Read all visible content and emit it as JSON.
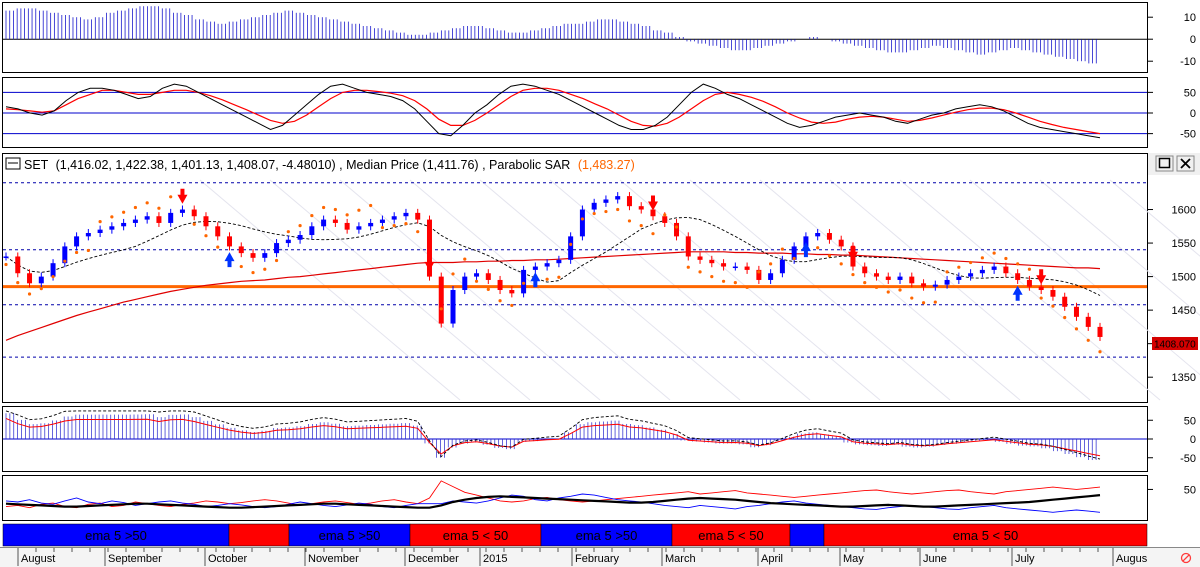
{
  "header": {
    "symbol": "SET",
    "ohlc_text": "(1,416.02, 1,422.38, 1,401.13, 1,408.07, -4.48010)",
    "median_text": "Median Price (1,411.76)",
    "sar_label": "Parabolic SAR",
    "sar_value_text": "(1,483.27)",
    "last_price_badge": "1408.070"
  },
  "colors": {
    "up_candle": "#0000ff",
    "down_candle": "#ff0000",
    "neutral_candle": "#000000",
    "sar_dots": "#ff6600",
    "long_ma": "#e00000",
    "hline_orange": "#ff6600",
    "dashed_levels": "#0000aa",
    "buy_arrow": "#0033ff",
    "sell_arrow": "#ff0000",
    "band_blue": "#0000ff",
    "band_red": "#ff0000"
  },
  "icons": {
    "restore": "restore-icon",
    "close": "close-icon",
    "status": "no-sync-icon"
  },
  "chart_data": {
    "type": "candlestick",
    "panels": {
      "top_histogram": {
        "yticks": [
          "10",
          "0",
          "-10"
        ],
        "ylim": [
          -14,
          16
        ],
        "values": [
          13,
          14,
          14,
          13,
          12,
          11,
          10,
          9,
          10,
          12,
          13,
          14,
          15,
          15,
          14,
          12,
          11,
          9,
          8,
          7,
          8,
          9,
          10,
          11,
          12,
          13,
          12,
          11,
          10,
          9,
          8,
          7,
          6,
          5,
          4,
          3,
          2,
          2,
          3,
          4,
          5,
          6,
          6,
          5,
          4,
          3,
          3,
          4,
          5,
          6,
          7,
          7,
          8,
          9,
          9,
          8,
          7,
          6,
          4,
          3,
          1,
          -1,
          -2,
          -3,
          -4,
          -5,
          -5,
          -4,
          -3,
          -2,
          -1,
          0,
          1,
          0,
          -1,
          -2,
          -3,
          -4,
          -5,
          -6,
          -6,
          -5,
          -4,
          -3,
          -4,
          -5,
          -6,
          -7,
          -6,
          -5,
          -4,
          -5,
          -6,
          -7,
          -8,
          -9,
          -10,
          -11
        ]
      },
      "oscillator_1": {
        "yticks": [
          "50",
          "0",
          "-50"
        ],
        "ylim": [
          -80,
          80
        ],
        "osc_values": [
          15,
          10,
          0,
          -5,
          5,
          30,
          50,
          60,
          60,
          55,
          45,
          35,
          40,
          60,
          70,
          65,
          50,
          35,
          20,
          5,
          -10,
          -25,
          -40,
          -30,
          -5,
          20,
          45,
          65,
          70,
          60,
          50,
          45,
          40,
          30,
          10,
          -20,
          -50,
          -55,
          -30,
          0,
          20,
          45,
          65,
          70,
          65,
          55,
          45,
          30,
          15,
          0,
          -15,
          -30,
          -40,
          -40,
          -30,
          -10,
          20,
          50,
          70,
          60,
          45,
          35,
          20,
          5,
          -10,
          -25,
          -35,
          -30,
          -20,
          -10,
          -5,
          0,
          -5,
          -10,
          -20,
          -25,
          -15,
          -5,
          0,
          10,
          15,
          20,
          15,
          5,
          -10,
          -25,
          -35,
          -40,
          -45,
          -50,
          -55,
          -60
        ],
        "signal_values": [
          10,
          8,
          5,
          2,
          5,
          20,
          35,
          45,
          55,
          55,
          50,
          45,
          45,
          50,
          55,
          55,
          50,
          42,
          32,
          20,
          8,
          -5,
          -18,
          -25,
          -20,
          -5,
          15,
          35,
          50,
          55,
          55,
          52,
          48,
          42,
          30,
          10,
          -15,
          -30,
          -30,
          -18,
          0,
          20,
          40,
          55,
          60,
          60,
          55,
          45,
          35,
          22,
          10,
          -5,
          -20,
          -30,
          -32,
          -25,
          -10,
          10,
          30,
          45,
          50,
          45,
          38,
          28,
          15,
          0,
          -12,
          -22,
          -25,
          -22,
          -15,
          -10,
          -8,
          -10,
          -15,
          -20,
          -18,
          -12,
          -5,
          2,
          8,
          12,
          12,
          8,
          0,
          -10,
          -20,
          -28,
          -35,
          -40,
          -45,
          -50
        ]
      },
      "main": {
        "yticks": [
          1600,
          1550,
          1500,
          1450,
          1400,
          1350
        ],
        "ylim": [
          1316,
          1650
        ],
        "hline_orange": 1485,
        "dashed_levels": [
          1640,
          1540,
          1458,
          1380
        ],
        "close": [
          1530,
          1505,
          1490,
          1500,
          1520,
          1545,
          1560,
          1565,
          1570,
          1575,
          1580,
          1585,
          1590,
          1580,
          1595,
          1600,
          1590,
          1575,
          1560,
          1545,
          1535,
          1528,
          1535,
          1550,
          1555,
          1562,
          1575,
          1585,
          1580,
          1570,
          1575,
          1580,
          1585,
          1590,
          1595,
          1585,
          1500,
          1430,
          1480,
          1500,
          1505,
          1495,
          1480,
          1475,
          1510,
          1515,
          1520,
          1525,
          1560,
          1600,
          1610,
          1615,
          1620,
          1605,
          1600,
          1590,
          1580,
          1560,
          1530,
          1525,
          1520,
          1515,
          1515,
          1510,
          1495,
          1505,
          1525,
          1545,
          1560,
          1565,
          1555,
          1545,
          1515,
          1505,
          1500,
          1495,
          1500,
          1490,
          1485,
          1488,
          1495,
          1500,
          1505,
          1510,
          1515,
          1505,
          1495,
          1485,
          1480,
          1470,
          1455,
          1440,
          1425,
          1410
        ],
        "long_ma": [
          1405,
          1412,
          1418,
          1424,
          1430,
          1436,
          1442,
          1447,
          1452,
          1457,
          1462,
          1466,
          1470,
          1474,
          1478,
          1481,
          1484,
          1487,
          1489,
          1491,
          1493,
          1494,
          1495,
          1497,
          1499,
          1500,
          1502,
          1504,
          1506,
          1508,
          1510,
          1512,
          1514,
          1516,
          1518,
          1520,
          1521,
          1521,
          1521,
          1522,
          1522,
          1523,
          1523,
          1524,
          1524,
          1525,
          1525,
          1526,
          1527,
          1528,
          1529,
          1530,
          1531,
          1532,
          1533,
          1534,
          1535,
          1536,
          1537,
          1537,
          1537,
          1537,
          1536,
          1536,
          1535,
          1535,
          1535,
          1534,
          1534,
          1533,
          1533,
          1532,
          1532,
          1531,
          1530,
          1529,
          1528,
          1527,
          1526,
          1525,
          1524,
          1523,
          1522,
          1521,
          1520,
          1519,
          1518,
          1517,
          1516,
          1515,
          1514,
          1513,
          1513,
          1512
        ]
      },
      "oscillator_2": {
        "yticks": [
          "50",
          "0",
          "-50"
        ],
        "ylim": [
          -80,
          80
        ]
      },
      "adx": {
        "yticks": [
          "50"
        ],
        "ylim": [
          0,
          70
        ],
        "adx_values": [
          25,
          24,
          23,
          22,
          21,
          20,
          20,
          21,
          22,
          23,
          24,
          25,
          25,
          24,
          23,
          22,
          21,
          20,
          19,
          18,
          18,
          19,
          20,
          21,
          22,
          23,
          24,
          25,
          25,
          24,
          23,
          22,
          21,
          20,
          19,
          18,
          18,
          22,
          28,
          32,
          35,
          37,
          38,
          37,
          36,
          35,
          34,
          33,
          32,
          31,
          30,
          29,
          28,
          27,
          27,
          28,
          30,
          32,
          34,
          35,
          34,
          33,
          32,
          30,
          28,
          26,
          25,
          24,
          23,
          22,
          21,
          20,
          20,
          21,
          22,
          23,
          22,
          21,
          20,
          20,
          21,
          22,
          23,
          24,
          25,
          26,
          27,
          28,
          30,
          32,
          34,
          36,
          38,
          40
        ],
        "di_plus": [
          30,
          28,
          32,
          26,
          24,
          30,
          35,
          28,
          25,
          30,
          27,
          22,
          25,
          28,
          30,
          26,
          24,
          20,
          22,
          25,
          23,
          20,
          18,
          20,
          24,
          28,
          25,
          22,
          20,
          23,
          26,
          24,
          20,
          18,
          22,
          25,
          25,
          25,
          30,
          28,
          26,
          30,
          35,
          40,
          38,
          32,
          30,
          35,
          38,
          42,
          40,
          36,
          32,
          30,
          28,
          25,
          22,
          20,
          18,
          22,
          20,
          18,
          16,
          20,
          22,
          25,
          28,
          30,
          26,
          24,
          22,
          20,
          18,
          16,
          15,
          18,
          20,
          22,
          20,
          18,
          16,
          15,
          18,
          20,
          22,
          18,
          16,
          14,
          12,
          10,
          12,
          14,
          12,
          10
        ],
        "di_minus": [
          20,
          22,
          18,
          24,
          26,
          20,
          18,
          24,
          26,
          20,
          22,
          28,
          25,
          22,
          20,
          24,
          26,
          30,
          28,
          25,
          27,
          30,
          32,
          30,
          26,
          22,
          25,
          28,
          30,
          27,
          24,
          26,
          30,
          32,
          28,
          25,
          35,
          65,
          55,
          45,
          40,
          35,
          30,
          28,
          30,
          34,
          36,
          32,
          30,
          28,
          30,
          32,
          34,
          36,
          38,
          40,
          42,
          44,
          46,
          42,
          44,
          46,
          48,
          44,
          42,
          40,
          38,
          36,
          38,
          40,
          42,
          44,
          46,
          48,
          49,
          46,
          44,
          42,
          44,
          46,
          48,
          49,
          46,
          44,
          42,
          46,
          48,
          50,
          52,
          54,
          52,
          50,
          52,
          54
        ]
      }
    },
    "trend_bands": [
      {
        "label": "ema 5 >50",
        "color": "#0000ff"
      },
      {
        "label": "",
        "color": "#ff0000"
      },
      {
        "label": "ema 5 >50",
        "color": "#0000ff"
      },
      {
        "label": "ema 5 < 50",
        "color": "#ff0000"
      },
      {
        "label": "ema 5 >50",
        "color": "#0000ff"
      },
      {
        "label": "ema 5 < 50",
        "color": "#ff0000"
      },
      {
        "label": "",
        "color": "#0000ff"
      },
      {
        "label": "ema 5 < 50",
        "color": "#ff0000"
      }
    ],
    "x_months": [
      "August",
      "September",
      "October",
      "November",
      "December",
      "2015",
      "February",
      "March",
      "April",
      "May",
      "June",
      "July",
      "Augus"
    ]
  }
}
